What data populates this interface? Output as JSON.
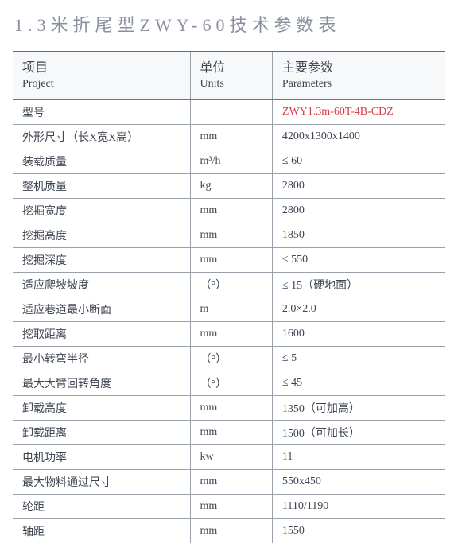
{
  "title": "1.3米折尾型ZWY-60技术参数表",
  "header": {
    "project_cn": "项目",
    "project_en": "Project",
    "units_cn": "单位",
    "units_en": "Units",
    "param_cn": "主要参数",
    "param_en": "Parameters"
  },
  "rows": [
    {
      "project": "型号",
      "unit": "",
      "param": "ZWY1.3m-60T-4B-CDZ",
      "param_red": true
    },
    {
      "project": "外形尺寸（长X宽X高）",
      "unit": "mm",
      "param": "4200x1300x1400"
    },
    {
      "project": "装载质量",
      "unit": "m³/h",
      "param": "≤ 60"
    },
    {
      "project": "整机质量",
      "unit": "kg",
      "param": "2800"
    },
    {
      "project": "挖掘宽度",
      "unit": "mm",
      "param": "2800"
    },
    {
      "project": "挖掘高度",
      "unit": "mm",
      "param": "1850"
    },
    {
      "project": "挖掘深度",
      "unit": "mm",
      "param": "≤ 550"
    },
    {
      "project": "适应爬坡坡度",
      "unit": "（°）",
      "param": "≤ 15（硬地面）"
    },
    {
      "project": "适应巷道最小断面",
      "unit": "m",
      "param": "2.0×2.0"
    },
    {
      "project": "挖取距离",
      "unit": "mm",
      "param": "1600"
    },
    {
      "project": "最小转弯半径",
      "unit": "（°）",
      "param": "≤ 5"
    },
    {
      "project": "最大大臂回转角度",
      "unit": "（°）",
      "param": "≤ 45"
    },
    {
      "project": "卸载高度",
      "unit": "mm",
      "param": "1350（可加高）"
    },
    {
      "project": "卸载距离",
      "unit": "mm",
      "param": "1500（可加长）"
    },
    {
      "project": "电机功率",
      "unit": "kw",
      "param": "11"
    },
    {
      "project": "最大物料通过尺寸",
      "unit": "mm",
      "param": "550x450"
    },
    {
      "project": "轮距",
      "unit": "mm",
      "param": "1110/1190"
    },
    {
      "project": "轴距",
      "unit": "mm",
      "param": "1550"
    }
  ]
}
